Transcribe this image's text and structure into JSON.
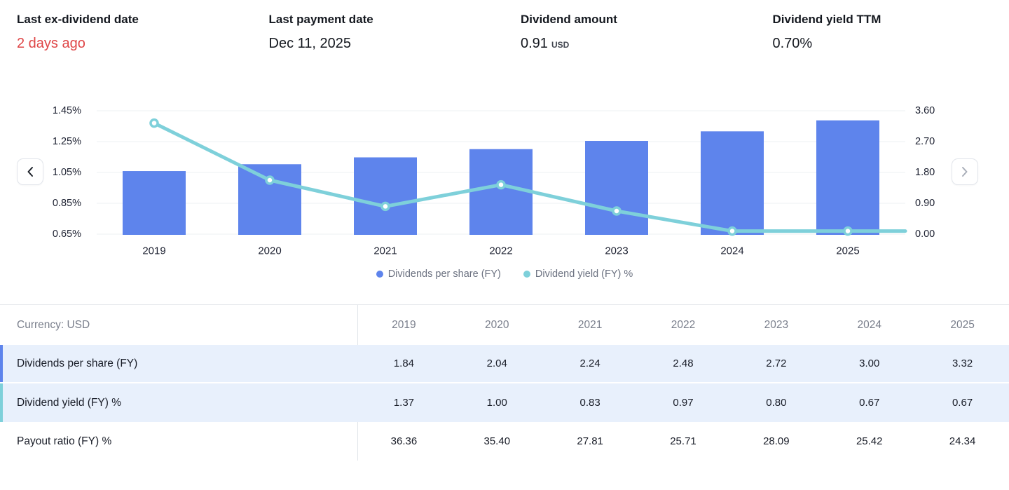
{
  "stats": [
    {
      "label": "Last ex-dividend date",
      "value": "2 days ago",
      "value_color": "#df4546"
    },
    {
      "label": "Last payment date",
      "value": "Dec 11, 2025"
    },
    {
      "label": "Dividend amount",
      "value": "0.91",
      "unit": "USD"
    },
    {
      "label": "Dividend yield TTM",
      "value": "0.70%"
    }
  ],
  "icons": {
    "chart_prev": "chevron-left-icon",
    "chart_next": "chevron-right-icon"
  },
  "chart_data": {
    "type": "bar+line combo",
    "categories": [
      "2019",
      "2020",
      "2021",
      "2022",
      "2023",
      "2024",
      "2025"
    ],
    "series": [
      {
        "name": "Dividends per share (FY)",
        "type": "bar",
        "axis": "right",
        "color": "#5e84ec",
        "values": [
          1.84,
          2.04,
          2.24,
          2.48,
          2.72,
          3.0,
          3.32
        ]
      },
      {
        "name": "Dividend yield (FY) %",
        "type": "line",
        "axis": "left",
        "color": "#7ed0da",
        "values": [
          1.37,
          1.0,
          0.83,
          0.97,
          0.8,
          0.67,
          0.67
        ]
      }
    ],
    "left_axis": {
      "ticks": [
        "1.45%",
        "1.25%",
        "1.05%",
        "0.85%",
        "0.65%"
      ],
      "min": 0.65,
      "max": 1.45
    },
    "right_axis": {
      "ticks": [
        "3.60",
        "2.70",
        "1.80",
        "0.90",
        "0.00"
      ],
      "min": 0.0,
      "max": 3.6
    },
    "grid": true,
    "legend_position": "bottom"
  },
  "table": {
    "first_col_header": "Currency: USD",
    "years": [
      "2019",
      "2020",
      "2021",
      "2022",
      "2023",
      "2024",
      "2025"
    ],
    "rows": [
      {
        "label": "Dividends per share (FY)",
        "highlighted": true,
        "accent": "#5e84ec",
        "values": [
          "1.84",
          "2.04",
          "2.24",
          "2.48",
          "2.72",
          "3.00",
          "3.32"
        ]
      },
      {
        "label": "Dividend yield (FY) %",
        "highlighted": true,
        "accent": "#7ed0da",
        "values": [
          "1.37",
          "1.00",
          "0.83",
          "0.97",
          "0.80",
          "0.67",
          "0.67"
        ]
      },
      {
        "label": "Payout ratio (FY) %",
        "highlighted": false,
        "accent": null,
        "values": [
          "36.36",
          "35.40",
          "27.81",
          "25.71",
          "28.09",
          "25.42",
          "24.34"
        ]
      }
    ],
    "highlight_bg": "#e8f0fc"
  },
  "colors": {
    "bar": "#5e84ec",
    "line": "#7ed0da",
    "negative_red": "#df4546",
    "grid_line": "#eef0f3",
    "muted_text": "#7a7f8c",
    "row_highlight": "#e8f0fc"
  }
}
